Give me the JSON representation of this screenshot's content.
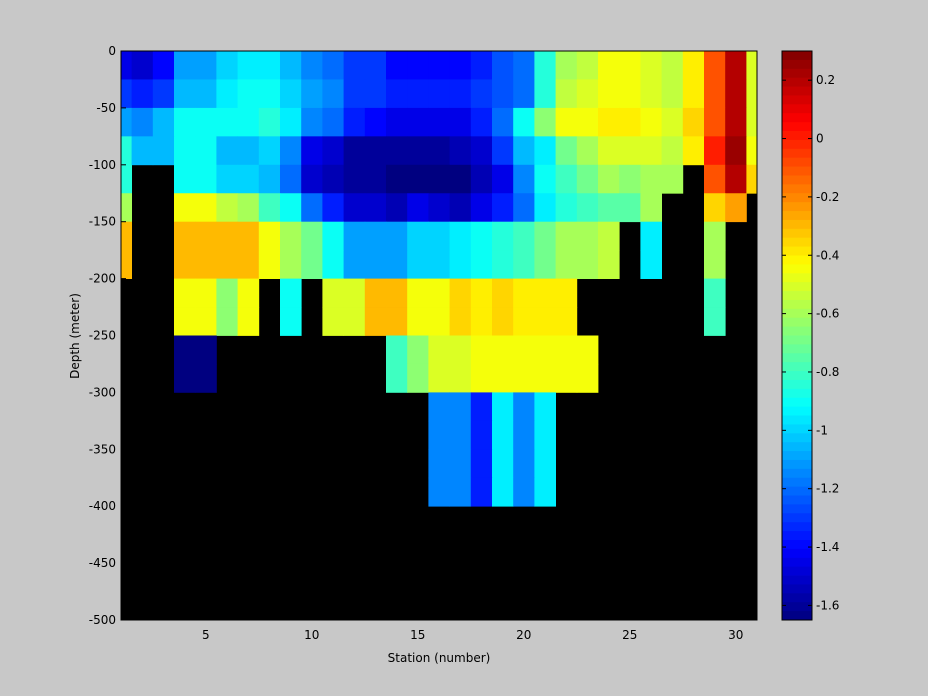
{
  "chart_data": {
    "type": "heatmap",
    "title": "",
    "xlabel": "Station (number)",
    "ylabel": "Depth (meter)",
    "xlim": [
      1,
      31
    ],
    "ylim": [
      -500,
      0
    ],
    "x_ticks": [
      5,
      10,
      15,
      20,
      25,
      30
    ],
    "y_ticks": [
      0,
      -50,
      -100,
      -150,
      -200,
      -250,
      -300,
      -350,
      -400,
      -450,
      -500
    ],
    "colorbar": {
      "min": -1.65,
      "max": 0.3,
      "ticks": [
        0.2,
        0,
        -0.2,
        -0.4,
        -0.6,
        -0.8,
        -1,
        -1.2,
        -1.4,
        -1.6
      ],
      "tick_labels": [
        "0.2",
        "0",
        "-0.2",
        "-0.4",
        "-0.6",
        "-0.8",
        "-1",
        "-1.2",
        "-1.4",
        "-1.6"
      ],
      "colormap": "jet"
    },
    "background_color": "#000000",
    "stations": [
      1,
      2,
      3,
      4,
      5,
      6,
      7,
      8,
      9,
      10,
      11,
      12,
      13,
      14,
      15,
      16,
      17,
      18,
      19,
      20,
      21,
      22,
      23,
      24,
      25,
      26,
      27,
      28,
      29,
      30,
      31
    ],
    "depth_bins": [
      [
        0,
        -25
      ],
      [
        -25,
        -50
      ],
      [
        -50,
        -75
      ],
      [
        -75,
        -100
      ],
      [
        -100,
        -125
      ],
      [
        -125,
        -150
      ],
      [
        -150,
        -175
      ],
      [
        -175,
        -200
      ],
      [
        -200,
        -225
      ],
      [
        -225,
        -250
      ],
      [
        -250,
        -275
      ],
      [
        -275,
        -300
      ],
      [
        -300,
        -325
      ],
      [
        -325,
        -350
      ],
      [
        -350,
        -375
      ],
      [
        -375,
        -400
      ]
    ],
    "values": [
      [
        -1.45,
        -1.5,
        -1.4,
        -1.1,
        -1.1,
        -1.0,
        -0.95,
        -0.95,
        -1.05,
        -1.15,
        -1.2,
        -1.3,
        -1.3,
        -1.4,
        -1.4,
        -1.4,
        -1.4,
        -1.35,
        -1.25,
        -1.2,
        -0.85,
        -0.6,
        -0.55,
        -0.45,
        -0.45,
        -0.5,
        -0.55,
        -0.4,
        -0.1,
        0.2,
        -0.5
      ],
      [
        -1.3,
        -1.35,
        -1.3,
        -1.05,
        -1.05,
        -0.95,
        -0.9,
        -0.9,
        -1.0,
        -1.1,
        -1.15,
        -1.3,
        -1.3,
        -1.35,
        -1.35,
        -1.35,
        -1.35,
        -1.3,
        -1.25,
        -1.2,
        -0.85,
        -0.55,
        -0.5,
        -0.45,
        -0.45,
        -0.5,
        -0.55,
        -0.4,
        -0.1,
        0.2,
        -0.5
      ],
      [
        -1.1,
        -1.15,
        -1.05,
        -0.9,
        -0.9,
        -0.9,
        -0.9,
        -0.85,
        -0.95,
        -1.15,
        -1.2,
        -1.35,
        -1.4,
        -1.45,
        -1.45,
        -1.45,
        -1.45,
        -1.35,
        -1.2,
        -0.9,
        -0.65,
        -0.45,
        -0.45,
        -0.4,
        -0.4,
        -0.45,
        -0.5,
        -0.35,
        -0.1,
        0.2,
        -0.5
      ],
      [
        -0.85,
        -1.05,
        -1.05,
        -0.9,
        -0.9,
        -1.05,
        -1.05,
        -1.0,
        -1.15,
        -1.45,
        -1.5,
        -1.6,
        -1.6,
        -1.6,
        -1.6,
        -1.6,
        -1.55,
        -1.5,
        -1.3,
        -1.05,
        -0.95,
        -0.7,
        -0.6,
        -0.5,
        -0.5,
        -0.5,
        -0.55,
        -0.4,
        0.0,
        0.25,
        -0.45
      ],
      [
        -0.85,
        null,
        null,
        -0.9,
        -0.9,
        -1.0,
        -1.0,
        -1.05,
        -1.2,
        -1.5,
        -1.55,
        -1.6,
        -1.6,
        -1.65,
        -1.65,
        -1.65,
        -1.65,
        -1.55,
        -1.45,
        -1.15,
        -0.9,
        -0.8,
        -0.7,
        -0.6,
        -0.65,
        -0.6,
        -0.6,
        null,
        -0.1,
        0.2,
        -0.35
      ],
      [
        -0.6,
        null,
        null,
        -0.45,
        -0.45,
        -0.55,
        -0.6,
        -0.8,
        -0.9,
        -1.2,
        -1.35,
        -1.5,
        -1.5,
        -1.55,
        -1.45,
        -1.5,
        -1.55,
        -1.45,
        -1.35,
        -1.2,
        -0.95,
        -0.85,
        -0.8,
        -0.75,
        -0.75,
        -0.6,
        null,
        null,
        -0.35,
        -0.25,
        null
      ],
      [
        -0.3,
        null,
        null,
        -0.3,
        -0.3,
        -0.3,
        -0.3,
        -0.45,
        -0.6,
        -0.7,
        -0.9,
        -1.1,
        -1.1,
        -1.1,
        -1.0,
        -1.0,
        -0.95,
        -0.9,
        -0.85,
        -0.8,
        -0.7,
        -0.6,
        -0.6,
        -0.55,
        null,
        -0.95,
        null,
        null,
        -0.6,
        null,
        null
      ],
      [
        -0.3,
        null,
        null,
        -0.3,
        -0.3,
        -0.3,
        -0.3,
        -0.45,
        -0.6,
        -0.7,
        -0.9,
        -1.1,
        -1.1,
        -1.1,
        -1.0,
        -1.0,
        -0.95,
        -0.9,
        -0.85,
        -0.8,
        -0.7,
        -0.6,
        -0.6,
        -0.55,
        null,
        -0.95,
        null,
        null,
        -0.6,
        null,
        null
      ],
      [
        null,
        null,
        null,
        -0.45,
        -0.45,
        -0.65,
        -0.45,
        null,
        -0.9,
        null,
        -0.5,
        -0.5,
        -0.3,
        -0.3,
        -0.45,
        -0.45,
        -0.35,
        -0.4,
        -0.35,
        -0.4,
        -0.4,
        -0.4,
        null,
        null,
        null,
        null,
        null,
        null,
        -0.8,
        null,
        null
      ],
      [
        null,
        null,
        null,
        -0.45,
        -0.45,
        -0.65,
        -0.45,
        null,
        -0.9,
        null,
        -0.5,
        -0.5,
        -0.3,
        -0.3,
        -0.45,
        -0.45,
        -0.35,
        -0.4,
        -0.35,
        -0.4,
        -0.4,
        -0.4,
        null,
        null,
        null,
        null,
        null,
        null,
        -0.8,
        null,
        null
      ],
      [
        null,
        null,
        null,
        -1.65,
        -1.65,
        null,
        null,
        null,
        null,
        null,
        null,
        null,
        null,
        -0.8,
        -0.65,
        -0.5,
        -0.5,
        -0.45,
        -0.45,
        -0.45,
        -0.45,
        -0.45,
        -0.45,
        null,
        null,
        null,
        null,
        null,
        null,
        null,
        null
      ],
      [
        null,
        null,
        null,
        -1.65,
        -1.65,
        null,
        null,
        null,
        null,
        null,
        null,
        null,
        null,
        -0.8,
        -0.65,
        -0.5,
        -0.5,
        -0.45,
        -0.45,
        -0.45,
        -0.45,
        -0.45,
        -0.45,
        null,
        null,
        null,
        null,
        null,
        null,
        null,
        null
      ],
      [
        null,
        null,
        null,
        null,
        null,
        null,
        null,
        null,
        null,
        null,
        null,
        null,
        null,
        null,
        null,
        -1.15,
        -1.15,
        -1.35,
        -0.95,
        -1.15,
        -0.95,
        null,
        null,
        null,
        null,
        null,
        null,
        null,
        null,
        null,
        null
      ],
      [
        null,
        null,
        null,
        null,
        null,
        null,
        null,
        null,
        null,
        null,
        null,
        null,
        null,
        null,
        null,
        -1.15,
        -1.15,
        -1.35,
        -0.95,
        -1.15,
        -0.95,
        null,
        null,
        null,
        null,
        null,
        null,
        null,
        null,
        null,
        null
      ],
      [
        null,
        null,
        null,
        null,
        null,
        null,
        null,
        null,
        null,
        null,
        null,
        null,
        null,
        null,
        null,
        -1.15,
        -1.15,
        -1.35,
        -0.95,
        -1.15,
        -0.95,
        null,
        null,
        null,
        null,
        null,
        null,
        null,
        null,
        null,
        null
      ],
      [
        null,
        null,
        null,
        null,
        null,
        null,
        null,
        null,
        null,
        null,
        null,
        null,
        null,
        null,
        null,
        -1.15,
        -1.15,
        -1.35,
        -0.95,
        -1.15,
        -0.95,
        null,
        null,
        null,
        null,
        null,
        null,
        null,
        null,
        null,
        null
      ]
    ]
  }
}
